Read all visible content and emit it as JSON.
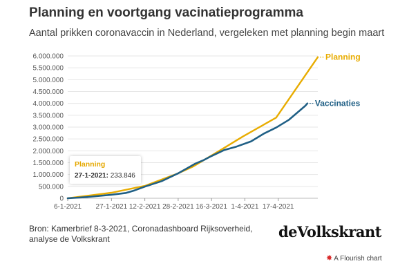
{
  "header": {
    "title": "Planning en voortgang vacinatieprogramma",
    "subtitle": "Aantal prikken coronavaccin in Nederland, vergeleken met planning begin maart"
  },
  "chart_data": {
    "type": "line",
    "x_axis": {
      "ticks": [
        "6-1-2021",
        "27-1-2021",
        "12-2-2021",
        "28-2-2021",
        "16-3-2021",
        "1-4-2021",
        "17-4-2021"
      ],
      "range": [
        "2021-01-06",
        "2021-05-06"
      ]
    },
    "y_axis": {
      "ticks": [
        "6.000.000",
        "5.500.000",
        "5.000.000",
        "4.500.000",
        "4.000.000",
        "3.500.000",
        "3.000.000",
        "2.500.000",
        "2.000.000",
        "1.500.000",
        "1.000.000",
        "500.000",
        "0"
      ],
      "range": [
        0,
        6000000
      ]
    },
    "grid": true,
    "colors": {
      "planning": "#e8ac00",
      "vaccinaties": "#1f5f85"
    },
    "series": [
      {
        "name": "Planning",
        "points": [
          [
            "2021-01-06",
            0
          ],
          [
            "2021-01-27",
            233846
          ],
          [
            "2021-02-12",
            520000
          ],
          [
            "2021-02-28",
            1050000
          ],
          [
            "2021-03-07",
            1330000
          ],
          [
            "2021-03-16",
            1800000
          ],
          [
            "2021-03-22",
            2120000
          ],
          [
            "2021-03-31",
            2600000
          ],
          [
            "2021-04-16",
            3400000
          ],
          [
            "2021-05-06",
            5950000
          ]
        ]
      },
      {
        "name": "Vaccinaties",
        "points": [
          [
            "2021-01-06",
            0
          ],
          [
            "2021-01-15",
            50000
          ],
          [
            "2021-01-27",
            150000
          ],
          [
            "2021-02-03",
            225000
          ],
          [
            "2021-02-07",
            330000
          ],
          [
            "2021-02-12",
            490000
          ],
          [
            "2021-02-20",
            720000
          ],
          [
            "2021-02-28",
            1050000
          ],
          [
            "2021-03-04",
            1250000
          ],
          [
            "2021-03-08",
            1450000
          ],
          [
            "2021-03-12",
            1600000
          ],
          [
            "2021-03-16",
            1780000
          ],
          [
            "2021-03-22",
            2030000
          ],
          [
            "2021-03-28",
            2180000
          ],
          [
            "2021-04-04",
            2400000
          ],
          [
            "2021-04-10",
            2720000
          ],
          [
            "2021-04-16",
            2980000
          ],
          [
            "2021-04-22",
            3300000
          ],
          [
            "2021-04-30",
            3900000
          ],
          [
            "2021-05-01",
            4000000
          ]
        ]
      }
    ],
    "tooltip": {
      "series": "Planning",
      "date": "27-1-2021",
      "value": "233.846"
    }
  },
  "footer": {
    "source": "Bron: Kamerbrief 8-3-2021, Coronadashboard Rijksoverheid, analyse de Volkskrant",
    "brand": "deVolkskrant",
    "credit": "A Flourish chart",
    "credit_icon": "flourish-star-icon"
  }
}
